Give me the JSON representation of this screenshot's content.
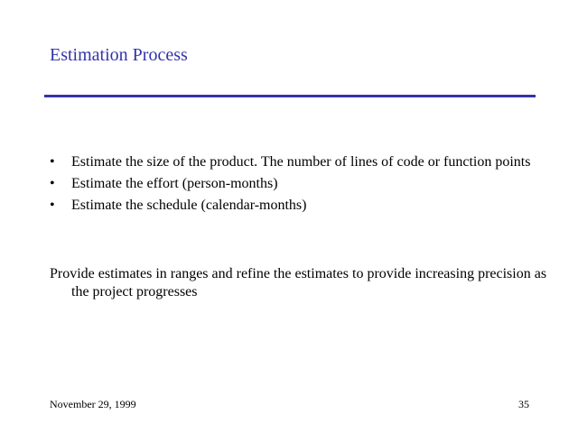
{
  "slide": {
    "title": "Estimation Process",
    "accent_color": "#3333aa",
    "bullets": [
      "Estimate the size of the product.  The number of lines of code or function points",
      "Estimate the effort (person-months)",
      "Estimate the schedule (calendar-months)"
    ],
    "bullet_glyph": "•",
    "paragraph": "Provide estimates in ranges and refine the estimates to provide increasing precision as the project progresses",
    "footer": {
      "date": "November 29, 1999",
      "page_number": "35"
    }
  }
}
